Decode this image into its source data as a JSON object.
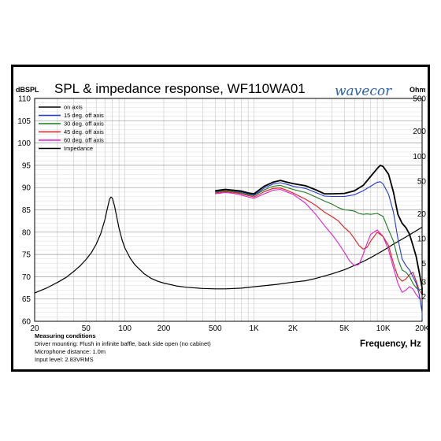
{
  "chart_data": {
    "type": "line",
    "title": "SPL & impedance response, WF110WA01",
    "logo_text": "wavecor",
    "left_axis_label": "dBSPL",
    "right_axis_label": "Ohm",
    "xlabel": "Frequency, Hz",
    "x_scale": "log",
    "xlim": [
      20,
      20000
    ],
    "ylim_left": [
      60,
      110
    ],
    "ylim_right": [
      1,
      500
    ],
    "grid": true,
    "legend_position": "top-left",
    "x_tick_labels": [
      {
        "value": 20,
        "label": "20"
      },
      {
        "value": 50,
        "label": "50"
      },
      {
        "value": 100,
        "label": "100"
      },
      {
        "value": 200,
        "label": "200"
      },
      {
        "value": 500,
        "label": "500"
      },
      {
        "value": 1000,
        "label": "1K"
      },
      {
        "value": 2000,
        "label": "2K"
      },
      {
        "value": 5000,
        "label": "5K"
      },
      {
        "value": 10000,
        "label": "10K"
      },
      {
        "value": 20000,
        "label": "20K"
      }
    ],
    "y_left_ticks": [
      60,
      65,
      70,
      75,
      80,
      85,
      90,
      95,
      100,
      105,
      110
    ],
    "y_right_ticks": [
      {
        "value": 2,
        "label": "2"
      },
      {
        "value": 3,
        "label": "3"
      },
      {
        "value": 5,
        "label": "5"
      },
      {
        "value": 10,
        "label": "10"
      },
      {
        "value": 20,
        "label": "20"
      },
      {
        "value": 50,
        "label": "50"
      },
      {
        "value": 100,
        "label": "100"
      },
      {
        "value": 200,
        "label": "200"
      },
      {
        "value": 500,
        "label": "500"
      }
    ],
    "series": [
      {
        "name": "on axis",
        "color": "#000000",
        "axis": "left",
        "width": 1.8,
        "points": [
          [
            500,
            89.3
          ],
          [
            600,
            89.6
          ],
          [
            700,
            89.4
          ],
          [
            800,
            89.2
          ],
          [
            900,
            88.8
          ],
          [
            1000,
            88.6
          ],
          [
            1100,
            89.5
          ],
          [
            1200,
            90.3
          ],
          [
            1400,
            91.2
          ],
          [
            1600,
            91.6
          ],
          [
            1800,
            91.2
          ],
          [
            2000,
            90.9
          ],
          [
            2500,
            90.4
          ],
          [
            3000,
            89.5
          ],
          [
            3500,
            88.6
          ],
          [
            4000,
            88.6
          ],
          [
            5000,
            88.7
          ],
          [
            6000,
            89.3
          ],
          [
            7000,
            90.5
          ],
          [
            8000,
            92.5
          ],
          [
            9000,
            94.3
          ],
          [
            9500,
            95.0
          ],
          [
            10000,
            94.7
          ],
          [
            11000,
            93.0
          ],
          [
            12000,
            89.0
          ],
          [
            13000,
            84.0
          ],
          [
            14000,
            82.0
          ],
          [
            15000,
            81.0
          ],
          [
            16000,
            79.5
          ],
          [
            17000,
            77.0
          ],
          [
            18000,
            74.5
          ],
          [
            19000,
            71.0
          ],
          [
            20000,
            67.5
          ],
          [
            20500,
            66.0
          ]
        ]
      },
      {
        "name": "15 deg. off axis",
        "color": "#1f3ad6",
        "axis": "left",
        "width": 1.1,
        "points": [
          [
            500,
            89.1
          ],
          [
            600,
            89.5
          ],
          [
            700,
            89.3
          ],
          [
            800,
            89.0
          ],
          [
            900,
            88.6
          ],
          [
            1000,
            88.3
          ],
          [
            1200,
            89.9
          ],
          [
            1400,
            90.8
          ],
          [
            1600,
            91.1
          ],
          [
            1800,
            90.7
          ],
          [
            2000,
            90.3
          ],
          [
            2500,
            89.8
          ],
          [
            3000,
            88.9
          ],
          [
            3500,
            88.1
          ],
          [
            4000,
            88.0
          ],
          [
            5000,
            88.0
          ],
          [
            6000,
            88.4
          ],
          [
            7000,
            89.3
          ],
          [
            8000,
            90.3
          ],
          [
            9000,
            91.2
          ],
          [
            9500,
            91.3
          ],
          [
            10000,
            90.8
          ],
          [
            11000,
            88.5
          ],
          [
            12000,
            84.5
          ],
          [
            13000,
            78.5
          ],
          [
            14000,
            74.0
          ],
          [
            15000,
            72.5
          ],
          [
            16000,
            71.5
          ],
          [
            17000,
            70.0
          ],
          [
            18000,
            68.5
          ],
          [
            19000,
            66.0
          ],
          [
            20000,
            62.0
          ],
          [
            20500,
            60.5
          ]
        ]
      },
      {
        "name": "30 deg. off axis",
        "color": "#1d7a1d",
        "axis": "left",
        "width": 1.1,
        "points": [
          [
            500,
            89.0
          ],
          [
            600,
            89.3
          ],
          [
            700,
            89.1
          ],
          [
            800,
            88.8
          ],
          [
            900,
            88.4
          ],
          [
            1000,
            88.2
          ],
          [
            1200,
            89.5
          ],
          [
            1400,
            90.3
          ],
          [
            1600,
            90.5
          ],
          [
            1800,
            90.0
          ],
          [
            2000,
            89.6
          ],
          [
            2500,
            88.9
          ],
          [
            3000,
            87.9
          ],
          [
            3500,
            87.0
          ],
          [
            4000,
            86.3
          ],
          [
            4500,
            85.5
          ],
          [
            5000,
            85.0
          ],
          [
            5500,
            84.9
          ],
          [
            6000,
            84.7
          ],
          [
            6500,
            84.2
          ],
          [
            7000,
            84.0
          ],
          [
            7500,
            84.1
          ],
          [
            8000,
            84.0
          ],
          [
            9000,
            84.2
          ],
          [
            10000,
            83.5
          ],
          [
            11000,
            80.5
          ],
          [
            12000,
            78.0
          ],
          [
            13000,
            74.0
          ],
          [
            14000,
            71.5
          ],
          [
            15000,
            71.0
          ],
          [
            16000,
            70.0
          ],
          [
            17000,
            68.5
          ],
          [
            18000,
            67.5
          ],
          [
            19000,
            67.0
          ],
          [
            20000,
            67.3
          ]
        ]
      },
      {
        "name": "45 deg. off axis",
        "color": "#e11b1b",
        "axis": "left",
        "width": 1.1,
        "points": [
          [
            500,
            88.8
          ],
          [
            600,
            89.1
          ],
          [
            700,
            88.9
          ],
          [
            800,
            88.6
          ],
          [
            900,
            88.2
          ],
          [
            1000,
            87.9
          ],
          [
            1200,
            89.1
          ],
          [
            1400,
            89.8
          ],
          [
            1600,
            89.9
          ],
          [
            1800,
            89.4
          ],
          [
            2000,
            88.8
          ],
          [
            2500,
            87.4
          ],
          [
            3000,
            86.0
          ],
          [
            3500,
            84.5
          ],
          [
            4000,
            83.5
          ],
          [
            4500,
            82.5
          ],
          [
            5000,
            81.0
          ],
          [
            5500,
            80.0
          ],
          [
            6000,
            78.5
          ],
          [
            6500,
            77.0
          ],
          [
            7000,
            76.2
          ],
          [
            7500,
            76.6
          ],
          [
            8000,
            78.0
          ],
          [
            9000,
            80.0
          ],
          [
            10000,
            79.0
          ],
          [
            11000,
            77.0
          ],
          [
            12000,
            73.0
          ],
          [
            13000,
            70.0
          ],
          [
            14000,
            69.0
          ],
          [
            15000,
            69.5
          ],
          [
            16000,
            70.5
          ],
          [
            17000,
            71.0
          ],
          [
            18000,
            69.0
          ],
          [
            19000,
            67.0
          ],
          [
            20000,
            66.0
          ]
        ]
      },
      {
        "name": "60 deg. off axis",
        "color": "#e01ed3",
        "axis": "left",
        "width": 1.1,
        "points": [
          [
            500,
            88.6
          ],
          [
            600,
            88.9
          ],
          [
            700,
            88.7
          ],
          [
            800,
            88.3
          ],
          [
            900,
            87.9
          ],
          [
            1000,
            87.6
          ],
          [
            1200,
            88.6
          ],
          [
            1400,
            89.4
          ],
          [
            1600,
            89.6
          ],
          [
            1800,
            89.0
          ],
          [
            2000,
            88.5
          ],
          [
            2500,
            86.5
          ],
          [
            3000,
            84.0
          ],
          [
            3500,
            81.5
          ],
          [
            4000,
            79.5
          ],
          [
            4500,
            77.5
          ],
          [
            5000,
            75.5
          ],
          [
            5500,
            73.5
          ],
          [
            6000,
            72.5
          ],
          [
            6500,
            72.8
          ],
          [
            7000,
            75.0
          ],
          [
            7500,
            77.5
          ],
          [
            8000,
            79.5
          ],
          [
            9000,
            80.5
          ],
          [
            10000,
            79.0
          ],
          [
            11000,
            76.0
          ],
          [
            12000,
            72.0
          ],
          [
            13000,
            68.5
          ],
          [
            14000,
            66.5
          ],
          [
            15000,
            67.0
          ],
          [
            16000,
            67.8
          ],
          [
            17000,
            67.2
          ],
          [
            18000,
            66.0
          ],
          [
            19000,
            65.2
          ],
          [
            20000,
            65.0
          ]
        ]
      },
      {
        "name": "Impedance",
        "color": "#000000",
        "axis": "right",
        "width": 1.2,
        "points": [
          [
            20,
            2.2
          ],
          [
            25,
            2.55
          ],
          [
            30,
            2.95
          ],
          [
            35,
            3.4
          ],
          [
            40,
            4.0
          ],
          [
            45,
            4.7
          ],
          [
            50,
            5.6
          ],
          [
            55,
            6.8
          ],
          [
            60,
            8.6
          ],
          [
            65,
            11.5
          ],
          [
            70,
            17.0
          ],
          [
            73,
            23.0
          ],
          [
            76,
            30.0
          ],
          [
            78,
            32.0
          ],
          [
            80,
            31.0
          ],
          [
            83,
            25.0
          ],
          [
            86,
            19.0
          ],
          [
            90,
            13.5
          ],
          [
            95,
            9.7
          ],
          [
            100,
            7.7
          ],
          [
            110,
            5.8
          ],
          [
            120,
            4.8
          ],
          [
            140,
            3.8
          ],
          [
            160,
            3.3
          ],
          [
            180,
            3.05
          ],
          [
            200,
            2.9
          ],
          [
            250,
            2.68
          ],
          [
            300,
            2.58
          ],
          [
            400,
            2.5
          ],
          [
            500,
            2.47
          ],
          [
            600,
            2.47
          ],
          [
            800,
            2.52
          ],
          [
            1000,
            2.62
          ],
          [
            1500,
            2.8
          ],
          [
            2000,
            2.98
          ],
          [
            2500,
            3.1
          ],
          [
            3000,
            3.3
          ],
          [
            4000,
            3.75
          ],
          [
            5000,
            4.2
          ],
          [
            6000,
            4.75
          ],
          [
            7000,
            5.3
          ],
          [
            8000,
            5.9
          ],
          [
            9000,
            6.55
          ],
          [
            10000,
            7.2
          ],
          [
            12000,
            8.6
          ],
          [
            15000,
            10.5
          ],
          [
            18000,
            12.5
          ],
          [
            20000,
            13.8
          ]
        ]
      }
    ]
  },
  "notes": {
    "heading": "Measuring conditions",
    "line1": "Driver mounting: Flush in infinite baffle, back side open (no cabinet)",
    "line2": "Microphone distance: 1.0m",
    "line3": "Input level: 2.83VRMS"
  }
}
